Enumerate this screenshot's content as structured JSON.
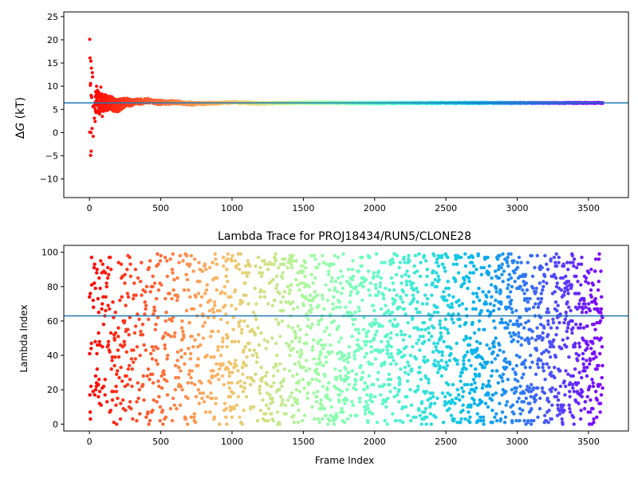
{
  "chart_data": [
    {
      "type": "scatter",
      "title": "",
      "xlabel": "",
      "ylabel_prefix": "Δ",
      "ylabel_symbol": "G",
      "ylabel_suffix": " (kT)",
      "xlim": [
        -180,
        3780
      ],
      "ylim": [
        -14,
        26
      ],
      "xticks": [
        "0",
        "500",
        "1000",
        "1500",
        "2000",
        "2500",
        "3000",
        "3500"
      ],
      "xtick_values": [
        0,
        500,
        1000,
        1500,
        2000,
        2500,
        3000,
        3500
      ],
      "yticks": [
        "−10",
        "−5",
        "0",
        "5",
        "10",
        "15",
        "20",
        "25"
      ],
      "ytick_values": [
        -10,
        -5,
        0,
        5,
        10,
        15,
        20,
        25
      ],
      "hline": 6.4,
      "colormap": "rainbow (reversed: red at frame 0, violet at frame 3600)",
      "n_frames": 3600,
      "series": [
        {
          "description": "running free-energy estimate per frame",
          "early_points": [
            {
              "x": 2,
              "y": 20.1
            },
            {
              "x": 4,
              "y": 16.1
            },
            {
              "x": 10,
              "y": 15.4
            },
            {
              "x": 14,
              "y": 13.9
            },
            {
              "x": 20,
              "y": 12.9
            },
            {
              "x": 22,
              "y": 12.0
            },
            {
              "x": 6,
              "y": 10.2
            },
            {
              "x": 8,
              "y": 10.6
            },
            {
              "x": 12,
              "y": 8.0
            },
            {
              "x": 16,
              "y": 7.6
            },
            {
              "x": 24,
              "y": 5.6
            },
            {
              "x": 30,
              "y": 5.8
            },
            {
              "x": 18,
              "y": 0.9
            },
            {
              "x": 2,
              "y": 0.1
            },
            {
              "x": 10,
              "y": 0.0
            },
            {
              "x": 12,
              "y": -4.0
            },
            {
              "x": 8,
              "y": -4.9
            },
            {
              "x": 26,
              "y": -0.8
            },
            {
              "x": 34,
              "y": 3.1
            },
            {
              "x": 40,
              "y": 2.4
            },
            {
              "x": 50,
              "y": 10.0
            },
            {
              "x": 56,
              "y": 9.1
            },
            {
              "x": 60,
              "y": 8.6
            },
            {
              "x": 80,
              "y": 9.8
            },
            {
              "x": 70,
              "y": 4.0
            },
            {
              "x": 90,
              "y": 3.5
            }
          ],
          "envelope": [
            {
              "x": 50,
              "lo": 4.0,
              "hi": 9.0
            },
            {
              "x": 100,
              "lo": 4.6,
              "hi": 8.3
            },
            {
              "x": 150,
              "lo": 4.8,
              "hi": 7.8
            },
            {
              "x": 200,
              "lo": 4.3,
              "hi": 7.2
            },
            {
              "x": 250,
              "lo": 5.6,
              "hi": 7.5
            },
            {
              "x": 300,
              "lo": 5.8,
              "hi": 7.2
            },
            {
              "x": 400,
              "lo": 6.3,
              "hi": 7.4
            },
            {
              "x": 500,
              "lo": 6.0,
              "hi": 7.0
            },
            {
              "x": 600,
              "lo": 6.2,
              "hi": 6.9
            },
            {
              "x": 700,
              "lo": 5.9,
              "hi": 6.6
            },
            {
              "x": 800,
              "lo": 6.0,
              "hi": 6.5
            },
            {
              "x": 1000,
              "lo": 6.3,
              "hi": 6.7
            },
            {
              "x": 1200,
              "lo": 6.1,
              "hi": 6.5
            },
            {
              "x": 1500,
              "lo": 6.3,
              "hi": 6.6
            },
            {
              "x": 2000,
              "lo": 6.2,
              "hi": 6.5
            },
            {
              "x": 2500,
              "lo": 6.3,
              "hi": 6.5
            },
            {
              "x": 3000,
              "lo": 6.3,
              "hi": 6.5
            },
            {
              "x": 3600,
              "lo": 6.3,
              "hi": 6.5
            }
          ]
        }
      ]
    },
    {
      "type": "scatter",
      "title": "Lambda Trace for PROJ18434/RUN5/CLONE28",
      "xlabel": "Frame Index",
      "ylabel": "Lambda Index",
      "xlim": [
        -180,
        3780
      ],
      "ylim": [
        -4,
        104
      ],
      "xticks": [
        "0",
        "500",
        "1000",
        "1500",
        "2000",
        "2500",
        "3000",
        "3500"
      ],
      "xtick_values": [
        0,
        500,
        1000,
        1500,
        2000,
        2500,
        3000,
        3500
      ],
      "yticks": [
        "0",
        "20",
        "40",
        "60",
        "80",
        "100"
      ],
      "ytick_values": [
        0,
        20,
        40,
        60,
        80,
        100
      ],
      "hline": 63,
      "colormap": "rainbow (reversed: red at frame 0, violet at frame 3600)",
      "n_frames": 3600,
      "lambda_range": [
        0,
        99
      ],
      "sampling": "one point per frame, lambda index roughly uniform over 0–99, sparser near x=0 and denser toward x=3600"
    }
  ]
}
